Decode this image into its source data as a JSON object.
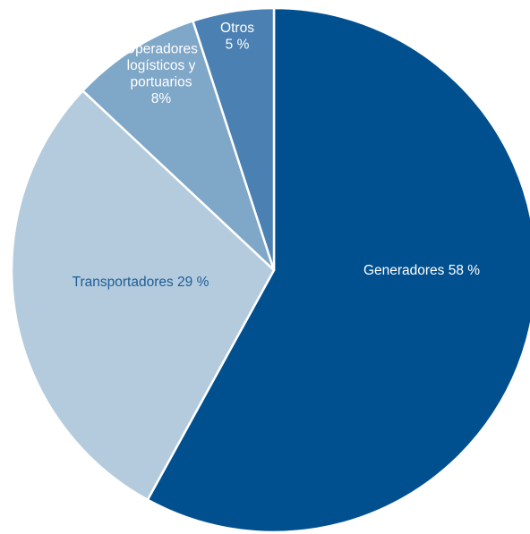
{
  "chart_data": {
    "type": "pie",
    "title": "",
    "start": "top",
    "direction": "clockwise",
    "slices": [
      {
        "name": "Generadores",
        "value": 58,
        "color": "#00508f",
        "label_lines": [
          "Generadores 58 %"
        ],
        "label_color": "#ffffff"
      },
      {
        "name": "Transportadores",
        "value": 29,
        "color": "#b3cbdd",
        "label_lines": [
          "Transportadores 29 %"
        ],
        "label_color": "#1f5d96"
      },
      {
        "name": "Operadores logísticos y portuarios",
        "value": 8,
        "color": "#7fa7c8",
        "label_lines": [
          "Operadores",
          "logísticos y",
          "portuarios",
          "8%"
        ],
        "label_color": "#ffffff"
      },
      {
        "name": "Otros",
        "value": 5,
        "color": "#4a80b2",
        "label_lines": [
          "Otros",
          "5 %"
        ],
        "label_color": "#ffffff"
      }
    ]
  }
}
